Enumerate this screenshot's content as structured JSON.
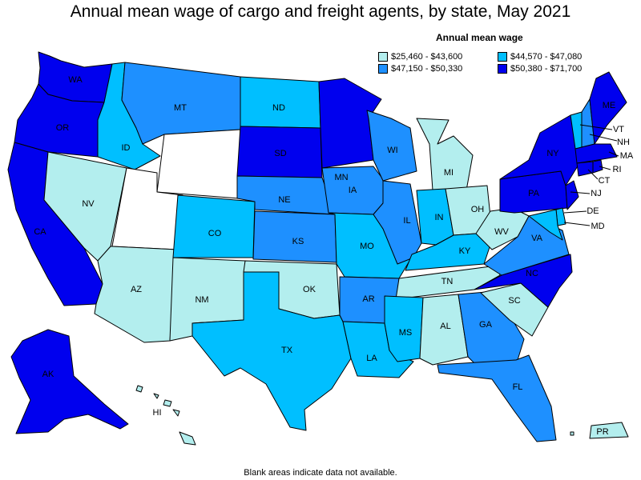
{
  "title": "Annual mean wage of cargo and freight agents, by state, May 2021",
  "legend": {
    "title": "Annual mean wage",
    "items": [
      {
        "label": "$25,460 - $43,600",
        "color": "#b3eeee"
      },
      {
        "label": "$44,570 - $47,080",
        "color": "#00bfff"
      },
      {
        "label": "$47,150 - $50,330",
        "color": "#1e90ff"
      },
      {
        "label": "$50,380 - $71,700",
        "color": "#0000ee"
      }
    ]
  },
  "footnote": "Blank areas indicate data not available.",
  "states": [
    {
      "code": "WA",
      "label": "WA",
      "cls": 3
    },
    {
      "code": "OR",
      "label": "OR",
      "cls": 3
    },
    {
      "code": "CA",
      "label": "CA",
      "cls": 3
    },
    {
      "code": "NV",
      "label": "NV",
      "cls": 0
    },
    {
      "code": "ID",
      "label": "ID",
      "cls": 1
    },
    {
      "code": "MT",
      "label": "MT",
      "cls": 2
    },
    {
      "code": "WY",
      "label": "",
      "cls": null
    },
    {
      "code": "UT",
      "label": "",
      "cls": null
    },
    {
      "code": "AZ",
      "label": "AZ",
      "cls": 0
    },
    {
      "code": "CO",
      "label": "CO",
      "cls": 1
    },
    {
      "code": "NM",
      "label": "NM",
      "cls": 0
    },
    {
      "code": "ND",
      "label": "ND",
      "cls": 1
    },
    {
      "code": "SD",
      "label": "SD",
      "cls": 3
    },
    {
      "code": "NE",
      "label": "NE",
      "cls": 2
    },
    {
      "code": "KS",
      "label": "KS",
      "cls": 2
    },
    {
      "code": "OK",
      "label": "OK",
      "cls": 0
    },
    {
      "code": "TX",
      "label": "TX",
      "cls": 1
    },
    {
      "code": "MN",
      "label": "MN",
      "cls": 3
    },
    {
      "code": "IA",
      "label": "IA",
      "cls": 2
    },
    {
      "code": "MO",
      "label": "MO",
      "cls": 1
    },
    {
      "code": "AR",
      "label": "AR",
      "cls": 2
    },
    {
      "code": "LA",
      "label": "LA",
      "cls": 1
    },
    {
      "code": "WI",
      "label": "WI",
      "cls": 2
    },
    {
      "code": "IL",
      "label": "IL",
      "cls": 2
    },
    {
      "code": "MI",
      "label": "MI",
      "cls": 0
    },
    {
      "code": "IN",
      "label": "IN",
      "cls": 1
    },
    {
      "code": "OH",
      "label": "OH",
      "cls": 0
    },
    {
      "code": "KY",
      "label": "KY",
      "cls": 1
    },
    {
      "code": "TN",
      "label": "TN",
      "cls": 0
    },
    {
      "code": "MS",
      "label": "MS",
      "cls": 1
    },
    {
      "code": "AL",
      "label": "AL",
      "cls": 0
    },
    {
      "code": "GA",
      "label": "GA",
      "cls": 2
    },
    {
      "code": "FL",
      "label": "FL",
      "cls": 2
    },
    {
      "code": "SC",
      "label": "SC",
      "cls": 0
    },
    {
      "code": "NC",
      "label": "NC",
      "cls": 3
    },
    {
      "code": "VA",
      "label": "VA",
      "cls": 2
    },
    {
      "code": "WV",
      "label": "WV",
      "cls": 0
    },
    {
      "code": "PA",
      "label": "PA",
      "cls": 3
    },
    {
      "code": "NY",
      "label": "NY",
      "cls": 3
    },
    {
      "code": "VT",
      "label": "VT",
      "cls": 1
    },
    {
      "code": "NH",
      "label": "NH",
      "cls": 2
    },
    {
      "code": "ME",
      "label": "ME",
      "cls": 3
    },
    {
      "code": "MA",
      "label": "MA",
      "cls": 3
    },
    {
      "code": "CT",
      "label": "CT",
      "cls": 3
    },
    {
      "code": "RI",
      "label": "RI",
      "cls": 3
    },
    {
      "code": "NJ",
      "label": "NJ",
      "cls": 3
    },
    {
      "code": "DE",
      "label": "DE",
      "cls": 1
    },
    {
      "code": "MD",
      "label": "MD",
      "cls": 1
    },
    {
      "code": "AK",
      "label": "AK",
      "cls": 3
    },
    {
      "code": "HI",
      "label": "HI",
      "cls": 0
    },
    {
      "code": "PR",
      "label": "PR",
      "cls": 0
    }
  ]
}
